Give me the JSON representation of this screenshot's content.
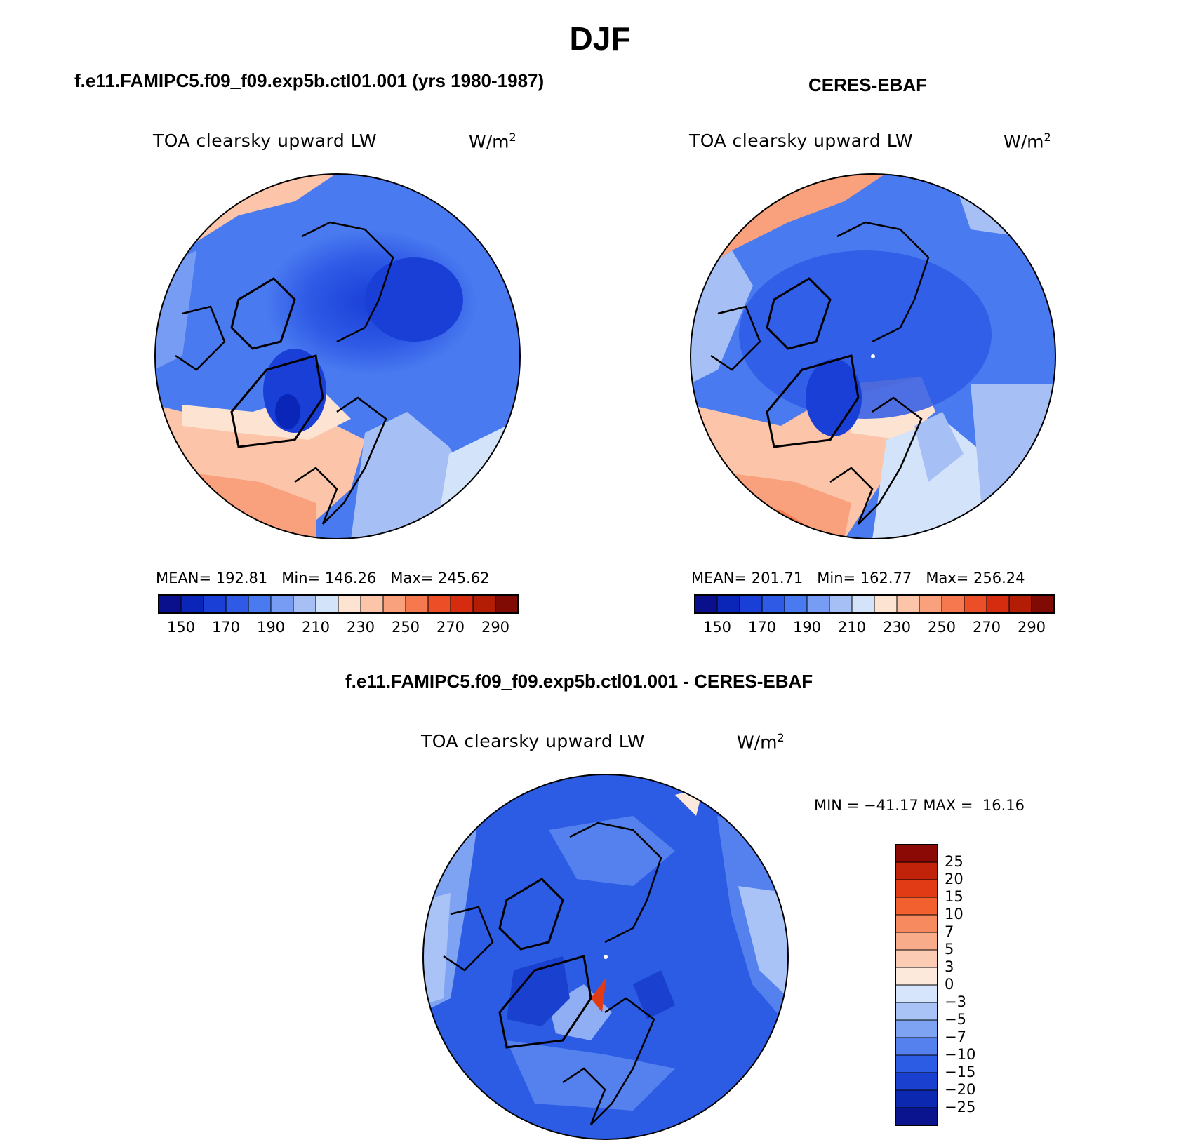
{
  "figure": {
    "title": "DJF"
  },
  "panels": [
    {
      "title": "f.e11.FAMIPC5.f09_f09.exp5b.ctl01.001 (yrs 1980-1987)",
      "variable": "TOA clearsky upward LW",
      "units": "W/m",
      "units_exp": "2",
      "stats": {
        "mean_label": "MEAN=",
        "mean": "192.81",
        "min_label": "Min=",
        "min": "146.26",
        "max_label": "Max=",
        "max": "245.62"
      }
    },
    {
      "title": "CERES-EBAF",
      "variable": "TOA clearsky upward LW",
      "units": "W/m",
      "units_exp": "2",
      "stats": {
        "mean_label": "MEAN=",
        "mean": "201.71",
        "min_label": "Min=",
        "min": "162.77",
        "max_label": "Max=",
        "max": "256.24"
      }
    },
    {
      "title": "f.e11.FAMIPC5.f09_f09.exp5b.ctl01.001 - CERES-EBAF",
      "variable": "TOA clearsky upward LW",
      "units": "W/m",
      "units_exp": "2",
      "stats": {
        "min_label": "MIN =",
        "min": "−41.17",
        "max_label": "MAX =",
        "max": "16.16"
      }
    }
  ],
  "chart_data": [
    {
      "type": "heatmap",
      "projection": "north-polar-stereographic",
      "colorbar_orientation": "horizontal",
      "colorbar_labels": [
        "150",
        "170",
        "190",
        "210",
        "230",
        "250",
        "270",
        "290"
      ],
      "colorbar_colors": [
        "#0a0f8c",
        "#0a26b8",
        "#1a3fd6",
        "#2e5ae6",
        "#4a7af0",
        "#779cf3",
        "#a6bff5",
        "#d3e3fa",
        "#fde3d2",
        "#fcc4a8",
        "#f9a07c",
        "#f5784f",
        "#ec4e28",
        "#d52c10",
        "#b31c05",
        "#7f0b04"
      ]
    },
    {
      "type": "heatmap",
      "projection": "north-polar-stereographic",
      "colorbar_orientation": "horizontal",
      "colorbar_labels": [
        "150",
        "170",
        "190",
        "210",
        "230",
        "250",
        "270",
        "290"
      ],
      "colorbar_colors": [
        "#0a0f8c",
        "#0a26b8",
        "#1a3fd6",
        "#2e5ae6",
        "#4a7af0",
        "#779cf3",
        "#a6bff5",
        "#d3e3fa",
        "#fde3d2",
        "#fcc4a8",
        "#f9a07c",
        "#f5784f",
        "#ec4e28",
        "#d52c10",
        "#b31c05",
        "#7f0b04"
      ]
    },
    {
      "type": "heatmap",
      "projection": "north-polar-stereographic",
      "colorbar_orientation": "vertical",
      "colorbar_labels": [
        "25",
        "20",
        "15",
        "10",
        "7",
        "5",
        "3",
        "0",
        "−3",
        "−5",
        "−7",
        "−10",
        "−15",
        "−20",
        "−25"
      ],
      "colorbar_colors": [
        "#8b0a05",
        "#c0220a",
        "#e03b14",
        "#f2602f",
        "#f78a5e",
        "#f9ac8a",
        "#fbccb3",
        "#fde8dc",
        "#d6e5fb",
        "#a9c3f6",
        "#7ea3f3",
        "#5481ee",
        "#2d5ce4",
        "#1a40cf",
        "#0c28b0",
        "#0a148e"
      ]
    }
  ]
}
